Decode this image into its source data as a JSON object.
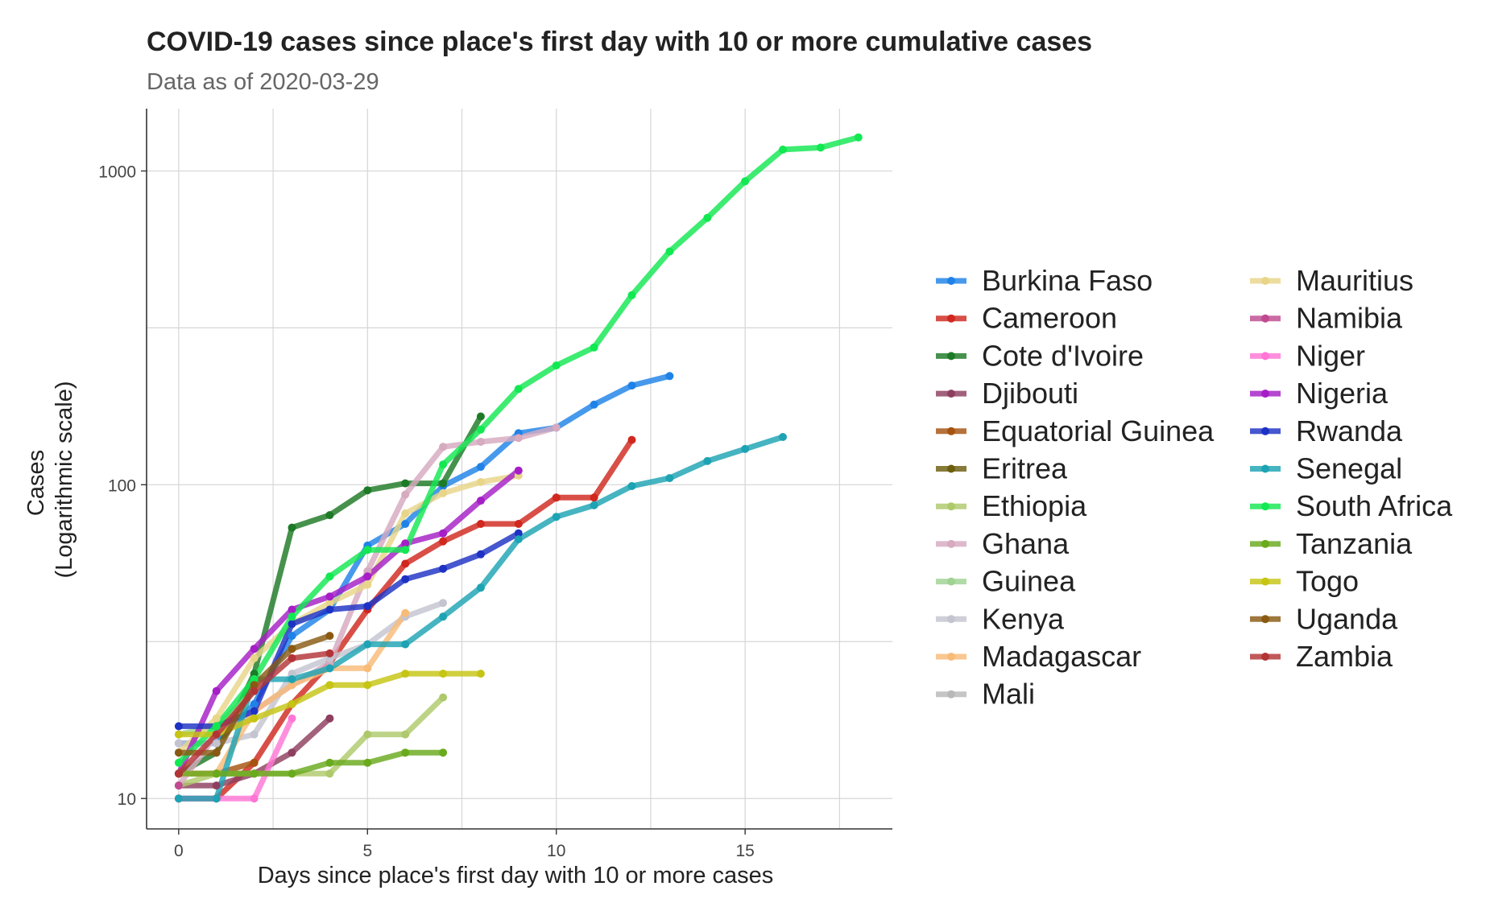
{
  "chart_data": {
    "type": "line",
    "title": "COVID-19 cases since place's first day with 10 or more cumulative cases",
    "subtitle": "Data as of 2020-03-29",
    "xlabel": "Days since place's first day with 10 or more cases",
    "ylabel_line1": "Cases",
    "ylabel_line2": "(Logarithmic scale)",
    "y_scale": "log10",
    "xlim": [
      -0.85,
      18.9
    ],
    "ylim": [
      8,
      1580
    ],
    "x_ticks": [
      {
        "v": 0,
        "label": "0"
      },
      {
        "v": 5,
        "label": "5"
      },
      {
        "v": 10,
        "label": "10"
      },
      {
        "v": 15,
        "label": "15"
      }
    ],
    "y_ticks": [
      {
        "v": 10,
        "label": "10"
      },
      {
        "v": 100,
        "label": "100"
      },
      {
        "v": 1000,
        "label": "1000"
      }
    ],
    "grid": true,
    "legend_position": "right",
    "series": [
      {
        "name": "Burkina Faso",
        "color": "#1f82e8",
        "x": [
          0,
          1,
          2,
          3,
          4,
          5,
          6,
          7,
          8,
          9,
          10,
          11,
          12,
          13
        ],
        "y": [
          15,
          15,
          20,
          33,
          40,
          64,
          75,
          99,
          114,
          146,
          152,
          180,
          207,
          222
        ]
      },
      {
        "name": "Cameroon",
        "color": "#d0281e",
        "x": [
          0,
          1,
          2,
          3,
          4,
          5,
          6,
          7,
          8,
          9,
          10,
          11,
          12
        ],
        "y": [
          10,
          10,
          13,
          20,
          27,
          40,
          56,
          66,
          75,
          75,
          91,
          91,
          139
        ]
      },
      {
        "name": "Cote d'Ivoire",
        "color": "#1d7a26",
        "x": [
          0,
          1,
          2,
          3,
          4,
          5,
          6,
          7,
          8
        ],
        "y": [
          12,
          14,
          25,
          73,
          80,
          96,
          101,
          101,
          165
        ]
      },
      {
        "name": "Djibouti",
        "color": "#8e3f5f",
        "x": [
          0,
          1,
          2,
          3,
          4
        ],
        "y": [
          11,
          11,
          12,
          14,
          18
        ]
      },
      {
        "name": "Equatorial Guinea",
        "color": "#a65310",
        "x": [
          0,
          1,
          2
        ],
        "y": [
          12,
          12,
          13
        ]
      },
      {
        "name": "Eritrea",
        "color": "#6b5e0d",
        "x": [
          0,
          1,
          2
        ],
        "y": [
          12,
          12,
          12
        ]
      },
      {
        "name": "Ethiopia",
        "color": "#aec96b",
        "x": [
          0,
          1,
          2,
          3,
          4,
          5,
          6,
          7
        ],
        "y": [
          11,
          12,
          12,
          12,
          12,
          16,
          16,
          21
        ]
      },
      {
        "name": "Ghana",
        "color": "#d6aabf",
        "x": [
          0,
          1,
          2,
          3,
          4,
          5,
          6,
          7,
          8,
          9,
          10
        ],
        "y": [
          11,
          16,
          19,
          23,
          27,
          53,
          93,
          132,
          137,
          141,
          152
        ]
      },
      {
        "name": "Guinea",
        "color": "#9fd392",
        "x": [
          0,
          1,
          2
        ],
        "y": [
          16,
          17,
          22
        ]
      },
      {
        "name": "Kenya",
        "color": "#c4c4d1",
        "x": [
          0,
          1,
          2,
          3,
          4,
          5,
          6,
          7
        ],
        "y": [
          15,
          15,
          16,
          25,
          28,
          31,
          38,
          42
        ]
      },
      {
        "name": "Madagascar",
        "color": "#f8bb78",
        "x": [
          0,
          1,
          2,
          3,
          4,
          5,
          6
        ],
        "y": [
          12,
          12,
          19,
          23,
          26,
          26,
          39
        ]
      },
      {
        "name": "Mali",
        "color": "#b8b8b8",
        "x": [
          0
        ],
        "y": [
          11
        ]
      },
      {
        "name": "Mauritius",
        "color": "#e8d58a",
        "x": [
          0,
          1,
          2,
          3,
          4,
          5,
          6,
          7,
          8,
          9
        ],
        "y": [
          14,
          18,
          28,
          36,
          42,
          48,
          81,
          94,
          102,
          107
        ]
      },
      {
        "name": "Namibia",
        "color": "#c04a8f",
        "x": [
          0
        ],
        "y": [
          11
        ]
      },
      {
        "name": "Niger",
        "color": "#ff76d5",
        "x": [
          0,
          1,
          2,
          3
        ],
        "y": [
          10,
          10,
          10,
          18
        ]
      },
      {
        "name": "Nigeria",
        "color": "#a51ec6",
        "x": [
          0,
          1,
          2,
          3,
          4,
          5,
          6,
          7,
          8,
          9
        ],
        "y": [
          12,
          22,
          30,
          40,
          44,
          51,
          65,
          70,
          89,
          111
        ]
      },
      {
        "name": "Rwanda",
        "color": "#1d32c4",
        "x": [
          0,
          1,
          2,
          3,
          4,
          5,
          6,
          7,
          8,
          9
        ],
        "y": [
          17,
          17,
          19,
          36,
          40,
          41,
          50,
          54,
          60,
          70
        ]
      },
      {
        "name": "Senegal",
        "color": "#1da3b3",
        "x": [
          0,
          1,
          2,
          3,
          4,
          5,
          6,
          7,
          8,
          9,
          10,
          11,
          12,
          13,
          14,
          15,
          16
        ],
        "y": [
          10,
          10,
          24,
          24,
          26,
          31,
          31,
          38,
          47,
          67,
          79,
          86,
          99,
          105,
          119,
          130,
          142
        ]
      },
      {
        "name": "South Africa",
        "color": "#12e852",
        "x": [
          0,
          1,
          2,
          3,
          4,
          5,
          6,
          7,
          8,
          9,
          10,
          11,
          12,
          13,
          14,
          15,
          16,
          17,
          18
        ],
        "y": [
          13,
          17,
          24,
          38,
          51,
          62,
          62,
          116,
          150,
          202,
          240,
          274,
          402,
          554,
          709,
          927,
          1170,
          1187,
          1280
        ]
      },
      {
        "name": "Tanzania",
        "color": "#6aaa1d",
        "x": [
          0,
          1,
          2,
          3,
          4,
          5,
          6,
          7
        ],
        "y": [
          12,
          12,
          12,
          12,
          13,
          13,
          14,
          14
        ]
      },
      {
        "name": "Togo",
        "color": "#c6c414",
        "x": [
          0,
          1,
          2,
          3,
          4,
          5,
          6,
          7,
          8
        ],
        "y": [
          16,
          16,
          18,
          20,
          23,
          23,
          25,
          25,
          25
        ]
      },
      {
        "name": "Uganda",
        "color": "#8a5a12",
        "x": [
          0,
          1,
          2,
          3,
          4
        ],
        "y": [
          14,
          14,
          23,
          30,
          33
        ]
      },
      {
        "name": "Zambia",
        "color": "#b33436",
        "x": [
          0,
          1,
          2,
          3,
          4
        ],
        "y": [
          12,
          16,
          22,
          28,
          29
        ]
      }
    ]
  }
}
